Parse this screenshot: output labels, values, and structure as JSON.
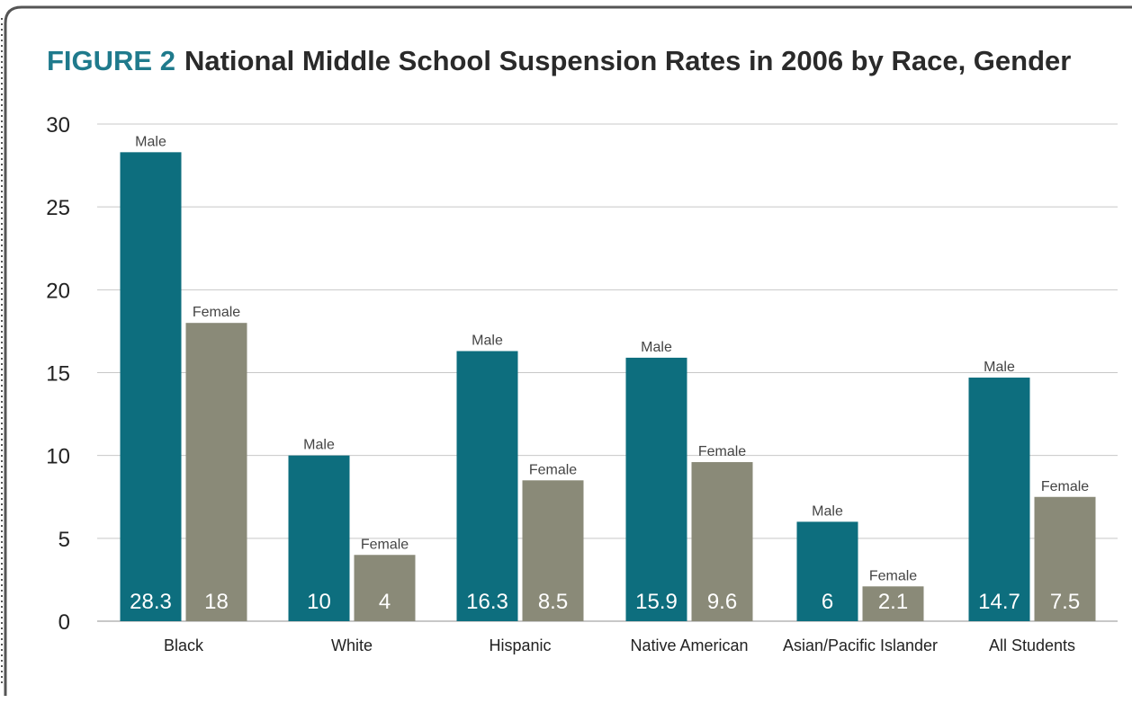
{
  "figure": {
    "number": "FIGURE 2",
    "title": "National Middle School Suspension Rates in 2006 by Race, Gender"
  },
  "colors": {
    "male": "#0d6e7e",
    "female": "#8a8a78",
    "accent": "#1f7a8c",
    "grid": "#c8c8c8",
    "frame": "#555555"
  },
  "chart_data": {
    "type": "bar",
    "title": "National Middle School Suspension Rates in 2006 by Race, Gender",
    "categories": [
      "Black",
      "White",
      "Hispanic",
      "Native American",
      "Asian/Pacific Islander",
      "All Students"
    ],
    "series": [
      {
        "name": "Male",
        "values": [
          28.3,
          10,
          16.3,
          15.9,
          6,
          14.7
        ],
        "labels": [
          "28.3",
          "10",
          "16.3",
          "15.9",
          "6",
          "14.7"
        ]
      },
      {
        "name": "Female",
        "values": [
          18,
          4,
          8.5,
          9.6,
          2.1,
          7.5
        ],
        "labels": [
          "18",
          "4",
          "8.5",
          "9.6",
          "2.1",
          "7.5"
        ]
      }
    ],
    "yticks": [
      "0",
      "5",
      "10",
      "15",
      "20",
      "25",
      "30"
    ],
    "ylim": [
      0,
      30
    ],
    "grid": true,
    "xlabel": "",
    "ylabel": ""
  }
}
